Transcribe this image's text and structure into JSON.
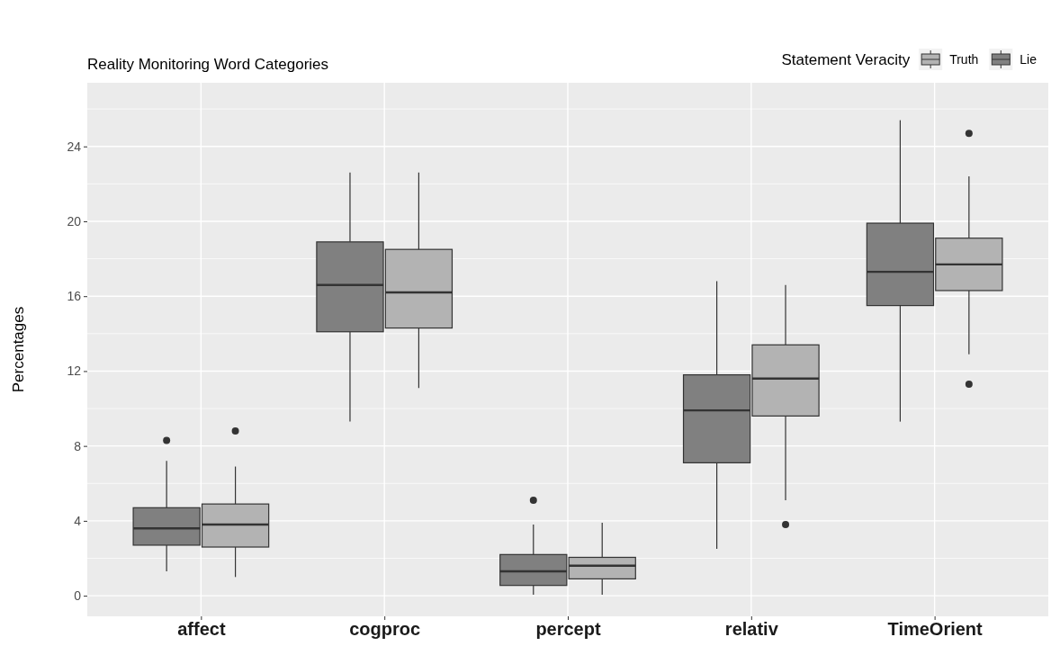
{
  "chart_data": {
    "type": "box",
    "subtitle": "Reality Monitoring Word Categories",
    "ylabel": "Percentages",
    "legend_title": "Statement Veracity",
    "legend": "top right",
    "grid": true,
    "categories": [
      "affect",
      "cogproc",
      "percept",
      "relativ",
      "TimeOrient"
    ],
    "ylim": [
      -1.1,
      27.4
    ],
    "yticks": [
      0,
      4,
      8,
      12,
      16,
      20,
      24
    ],
    "series": [
      {
        "name": "Lie",
        "color": "#808080",
        "boxes": [
          {
            "low": 1.3,
            "q1": 2.7,
            "median": 3.6,
            "q3": 4.7,
            "high": 7.2,
            "outliers": [
              8.3
            ]
          },
          {
            "low": 9.3,
            "q1": 14.1,
            "median": 16.6,
            "q3": 18.9,
            "high": 22.6
          },
          {
            "low": 0.05,
            "q1": 0.55,
            "median": 1.3,
            "q3": 2.2,
            "high": 3.8,
            "outliers": [
              5.1
            ]
          },
          {
            "low": 2.5,
            "q1": 7.1,
            "median": 9.9,
            "q3": 11.8,
            "high": 16.8
          },
          {
            "low": 9.3,
            "q1": 15.5,
            "median": 17.3,
            "q3": 19.9,
            "high": 25.4
          }
        ]
      },
      {
        "name": "Truth",
        "color": "#b3b3b3",
        "boxes": [
          {
            "low": 1.0,
            "q1": 2.6,
            "median": 3.8,
            "q3": 4.9,
            "high": 6.9,
            "outliers": [
              8.8
            ]
          },
          {
            "low": 11.1,
            "q1": 14.3,
            "median": 16.2,
            "q3": 18.5,
            "high": 22.6
          },
          {
            "low": 0.05,
            "q1": 0.9,
            "median": 1.6,
            "q3": 2.05,
            "high": 3.9
          },
          {
            "low": 5.1,
            "q1": 9.6,
            "median": 11.6,
            "q3": 13.4,
            "high": 16.6,
            "outliers": [
              3.8
            ]
          },
          {
            "low": 12.9,
            "q1": 16.3,
            "median": 17.7,
            "q3": 19.1,
            "high": 22.4,
            "outliers": [
              24.7,
              11.3
            ]
          }
        ]
      }
    ]
  }
}
